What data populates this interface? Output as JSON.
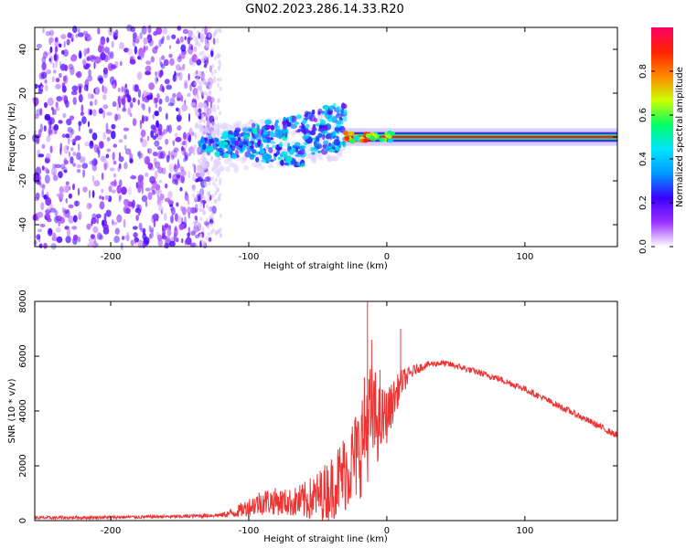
{
  "title": "GN02.2023.286.14.33.R20",
  "colors": {
    "snr_line": "#ee3333",
    "noise_purple": "#8a2be2",
    "colormap": [
      "#ffffff",
      "#9b30ff",
      "#3a00ff",
      "#0099ff",
      "#00e5ff",
      "#00ff66",
      "#ccff00",
      "#ff8800",
      "#ff2200",
      "#ff0066"
    ]
  },
  "chart_data": [
    {
      "type": "heatmap",
      "title": "GN02.2023.286.14.33.R20",
      "xlabel": "Height of straight line (km)",
      "ylabel": "Frequency (Hz)",
      "xlim": [
        -255,
        167
      ],
      "ylim": [
        -50,
        50
      ],
      "xticks": [
        -200,
        -100,
        0,
        100
      ],
      "yticks": [
        -40,
        -20,
        0,
        20,
        40
      ],
      "grid": false,
      "description_regions": [
        {
          "x_range": [
            -255,
            -125
          ],
          "freq_range": [
            -50,
            50
          ],
          "amplitude": 0.2,
          "pattern": "scattered noise"
        },
        {
          "x_range": [
            -135,
            -30
          ],
          "freq_range": [
            -15,
            20
          ],
          "amplitude": 0.35,
          "pattern": "scattered signal"
        },
        {
          "x_range": [
            -30,
            167
          ],
          "freq_range": [
            -1,
            1
          ],
          "amplitude": 0.95,
          "pattern": "steady carrier line"
        }
      ],
      "colorbar": {
        "label": "Normalized spectral amplitude",
        "range": [
          0,
          1
        ],
        "ticks": [
          0.0,
          0.2,
          0.4,
          0.6,
          0.8
        ]
      }
    },
    {
      "type": "line",
      "xlabel": "Height of straight line (km)",
      "ylabel": "SNR (10 * v/v)",
      "xlim": [
        -255,
        167
      ],
      "ylim": [
        0,
        8000
      ],
      "xticks": [
        -200,
        -100,
        0,
        100
      ],
      "yticks": [
        0,
        2000,
        4000,
        6000,
        8000
      ],
      "grid": false,
      "series": [
        {
          "color": "#ee3333",
          "x": [
            -255,
            -200,
            -150,
            -120,
            -110,
            -100,
            -90,
            -80,
            -70,
            -60,
            -50,
            -40,
            -30,
            -20,
            -15,
            -10,
            -5,
            0,
            10,
            20,
            30,
            40,
            50,
            60,
            80,
            100,
            120,
            140,
            167
          ],
          "y": [
            100,
            120,
            150,
            200,
            300,
            500,
            700,
            700,
            650,
            700,
            900,
            1200,
            1800,
            2500,
            3500,
            3800,
            3600,
            3800,
            5000,
            5500,
            5700,
            5750,
            5650,
            5500,
            5200,
            4800,
            4300,
            3800,
            3100
          ],
          "noise_amplitude": [
            60,
            60,
            60,
            80,
            200,
            350,
            500,
            500,
            500,
            700,
            900,
            1200,
            1500,
            1800,
            2200,
            2000,
            1400,
            1000,
            500,
            200,
            120,
            120,
            120,
            120,
            120,
            120,
            120,
            120,
            120
          ],
          "spikes": [
            {
              "x": -14,
              "y": 8000
            },
            {
              "x": -11,
              "y": 6600
            },
            {
              "x": 10,
              "y": 7000
            },
            {
              "x": -5,
              "y": 5500
            }
          ]
        }
      ]
    }
  ]
}
